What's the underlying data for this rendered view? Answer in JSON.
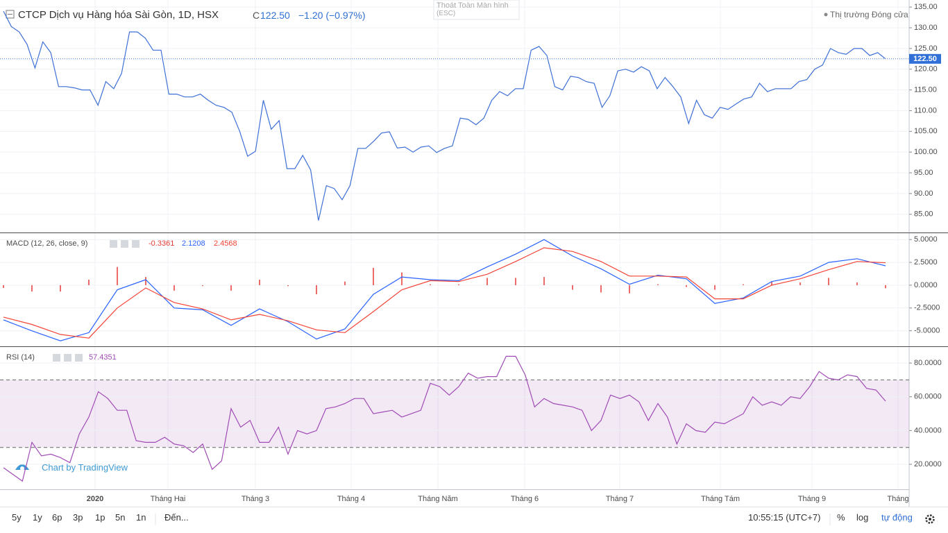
{
  "header": {
    "close_prefix": "C",
    "close": "122.50",
    "change": "−1.20 (−0.97%)",
    "market_status": "Thị trường Đóng cửa",
    "tooltip": "Thoát Toàn Màn hình",
    "tooltip_key": "(ESC)",
    "branding": "Chart by TradingView"
  },
  "x_labels": [
    "2020",
    "Tháng Hai",
    "Tháng 3",
    "Tháng 4",
    "Tháng Năm",
    "Tháng 6",
    "Tháng 7",
    "Tháng Tám",
    "Tháng 9",
    "Tháng"
  ],
  "toolbar": {
    "ranges": [
      "5y",
      "1y",
      "6p",
      "3p",
      "1p",
      "5n",
      "1n"
    ],
    "goto": "Đến...",
    "clock": "10:55:15 (UTC+7)",
    "percent": "%",
    "log": "log",
    "auto": "tự động"
  },
  "chart_data": [
    {
      "type": "line",
      "title": "CTCP Dịch vụ Hàng hóa Sài Gòn, 1D, HSX",
      "color": "#3d6fd6",
      "values": [
        134,
        130.3,
        129,
        126,
        120.3,
        126.6,
        124,
        115.8,
        115.8,
        115.5,
        115,
        115,
        111.3,
        117,
        115.3,
        119,
        129,
        129,
        127.5,
        124.6,
        124.6,
        114,
        114,
        113.3,
        113.3,
        114,
        112.5,
        111.3,
        110.8,
        109.6,
        105,
        99,
        100.2,
        112.5,
        105.5,
        107.6,
        96,
        96,
        99.2,
        95.7,
        83.5,
        91.9,
        91.2,
        88.5,
        91.9,
        100.9,
        100.9,
        102.6,
        104.6,
        104.9,
        101,
        101.2,
        100,
        101.2,
        101.5,
        99.9,
        100.9,
        101.5,
        108.2,
        107.9,
        106.6,
        108.2,
        112.5,
        114.6,
        113.6,
        115.3,
        115.3,
        124.6,
        125.5,
        123.3,
        115.8,
        115,
        118.3,
        118,
        117,
        116.6,
        110.8,
        113.6,
        119.6,
        120,
        119.3,
        120.6,
        119.6,
        115.3,
        118,
        115.8,
        113.3,
        106.9,
        112.5,
        109,
        108.2,
        110.8,
        110.3,
        111.6,
        112.8,
        113.3,
        116.6,
        114.6,
        115.3,
        115.3,
        115.3,
        117,
        117.5,
        120,
        121,
        125,
        124,
        123.6,
        125,
        125,
        123.3,
        124,
        122.5
      ],
      "ylim": [
        80.6,
        136.7
      ],
      "yticks": [
        {
          "value": 135,
          "label": "135.00"
        },
        {
          "value": 130,
          "label": "130.00"
        },
        {
          "value": 125,
          "label": "125.00"
        },
        {
          "value": 120,
          "label": "120.00"
        },
        {
          "value": 115,
          "label": "115.00"
        },
        {
          "value": 110,
          "label": "110.00"
        },
        {
          "value": 105,
          "label": "105.00"
        },
        {
          "value": 100,
          "label": "100.00"
        },
        {
          "value": 95,
          "label": "95.00"
        },
        {
          "value": 90,
          "label": "90.00"
        },
        {
          "value": 85,
          "label": "85.00"
        }
      ],
      "grid": true
    },
    {
      "type": "macd",
      "title": "MACD (12, 26, close, 9)",
      "series": [
        {
          "color": "#e53935",
          "last_label": "-0.3361",
          "values": [
            -0.3,
            -0.7,
            -0.7,
            0.6,
            2.0,
            0.9,
            -0.6,
            -0.1,
            -0.6,
            0.6,
            -0.1,
            -1.0,
            0.4,
            1.9,
            1.4,
            0.1,
            0.1,
            0.8,
            0.8,
            0.9,
            -0.5,
            -0.8,
            -0.9,
            0.1,
            -0.2,
            -0.5,
            0.1,
            0.4,
            0.3,
            0.8,
            0.3,
            -0.3361
          ]
        },
        {
          "color": "#2962ff",
          "last_label": "2.1208",
          "values": [
            -3.8,
            -5.0,
            -6.1,
            -5.2,
            -0.5,
            0.6,
            -2.5,
            -2.7,
            -4.4,
            -2.6,
            -4.0,
            -5.9,
            -4.8,
            -1.0,
            0.9,
            0.6,
            0.5,
            2.0,
            3.4,
            5.0,
            3.2,
            1.8,
            0.1,
            1.1,
            0.7,
            -2.0,
            -1.4,
            0.4,
            1.0,
            2.5,
            2.9,
            2.1208
          ]
        },
        {
          "color": "#f44336",
          "last_label": "2.4568",
          "values": [
            -3.5,
            -4.3,
            -5.4,
            -5.8,
            -2.5,
            -0.3,
            -1.9,
            -2.6,
            -3.8,
            -3.2,
            -3.9,
            -4.9,
            -5.2,
            -2.9,
            -0.5,
            0.5,
            0.4,
            1.2,
            2.6,
            4.1,
            3.7,
            2.6,
            1.0,
            1.0,
            0.9,
            -1.5,
            -1.5,
            0,
            0.7,
            1.7,
            2.6,
            2.4568
          ]
        }
      ],
      "ylim": [
        -6.7,
        5.7
      ],
      "yticks": [
        {
          "value": 5,
          "label": "5.0000"
        },
        {
          "value": 2.5,
          "label": "2.5000"
        },
        {
          "value": 0,
          "label": "0.0000"
        },
        {
          "value": -2.5,
          "label": "-2.5000"
        },
        {
          "value": -5,
          "label": "-5.0000"
        }
      ],
      "grid": true
    },
    {
      "type": "rsi",
      "title": "RSI (14)",
      "color": "#a04bb5",
      "last_label": "57.4351",
      "values": [
        18,
        14,
        10,
        33,
        25,
        26,
        24,
        21,
        38,
        48,
        63,
        59,
        52,
        52,
        34,
        33,
        33,
        36,
        32,
        31,
        27,
        32,
        17,
        22,
        53,
        42,
        46,
        33,
        33,
        42,
        26,
        40,
        38,
        40,
        53,
        54,
        56,
        59,
        59,
        50,
        51,
        52,
        48,
        50,
        52,
        68,
        66,
        61,
        66,
        74,
        71,
        72,
        72,
        84,
        84,
        73,
        54,
        59,
        56,
        55,
        54,
        52,
        40,
        46,
        61,
        59,
        61,
        57,
        46,
        56,
        48,
        32,
        44,
        40,
        39,
        45,
        44,
        47,
        50,
        60,
        55,
        57,
        55,
        60,
        59,
        66,
        75,
        71,
        70,
        73,
        72,
        65,
        64,
        57.4351
      ],
      "bands": [
        30,
        70
      ],
      "band_color": "#954bb0",
      "ylim": [
        5.2,
        89.5
      ],
      "yticks": [
        {
          "value": 80,
          "label": "80.0000"
        },
        {
          "value": 60,
          "label": "60.0000"
        },
        {
          "value": 40,
          "label": "40.0000"
        },
        {
          "value": 20,
          "label": "20.0000"
        }
      ],
      "grid": true
    }
  ]
}
